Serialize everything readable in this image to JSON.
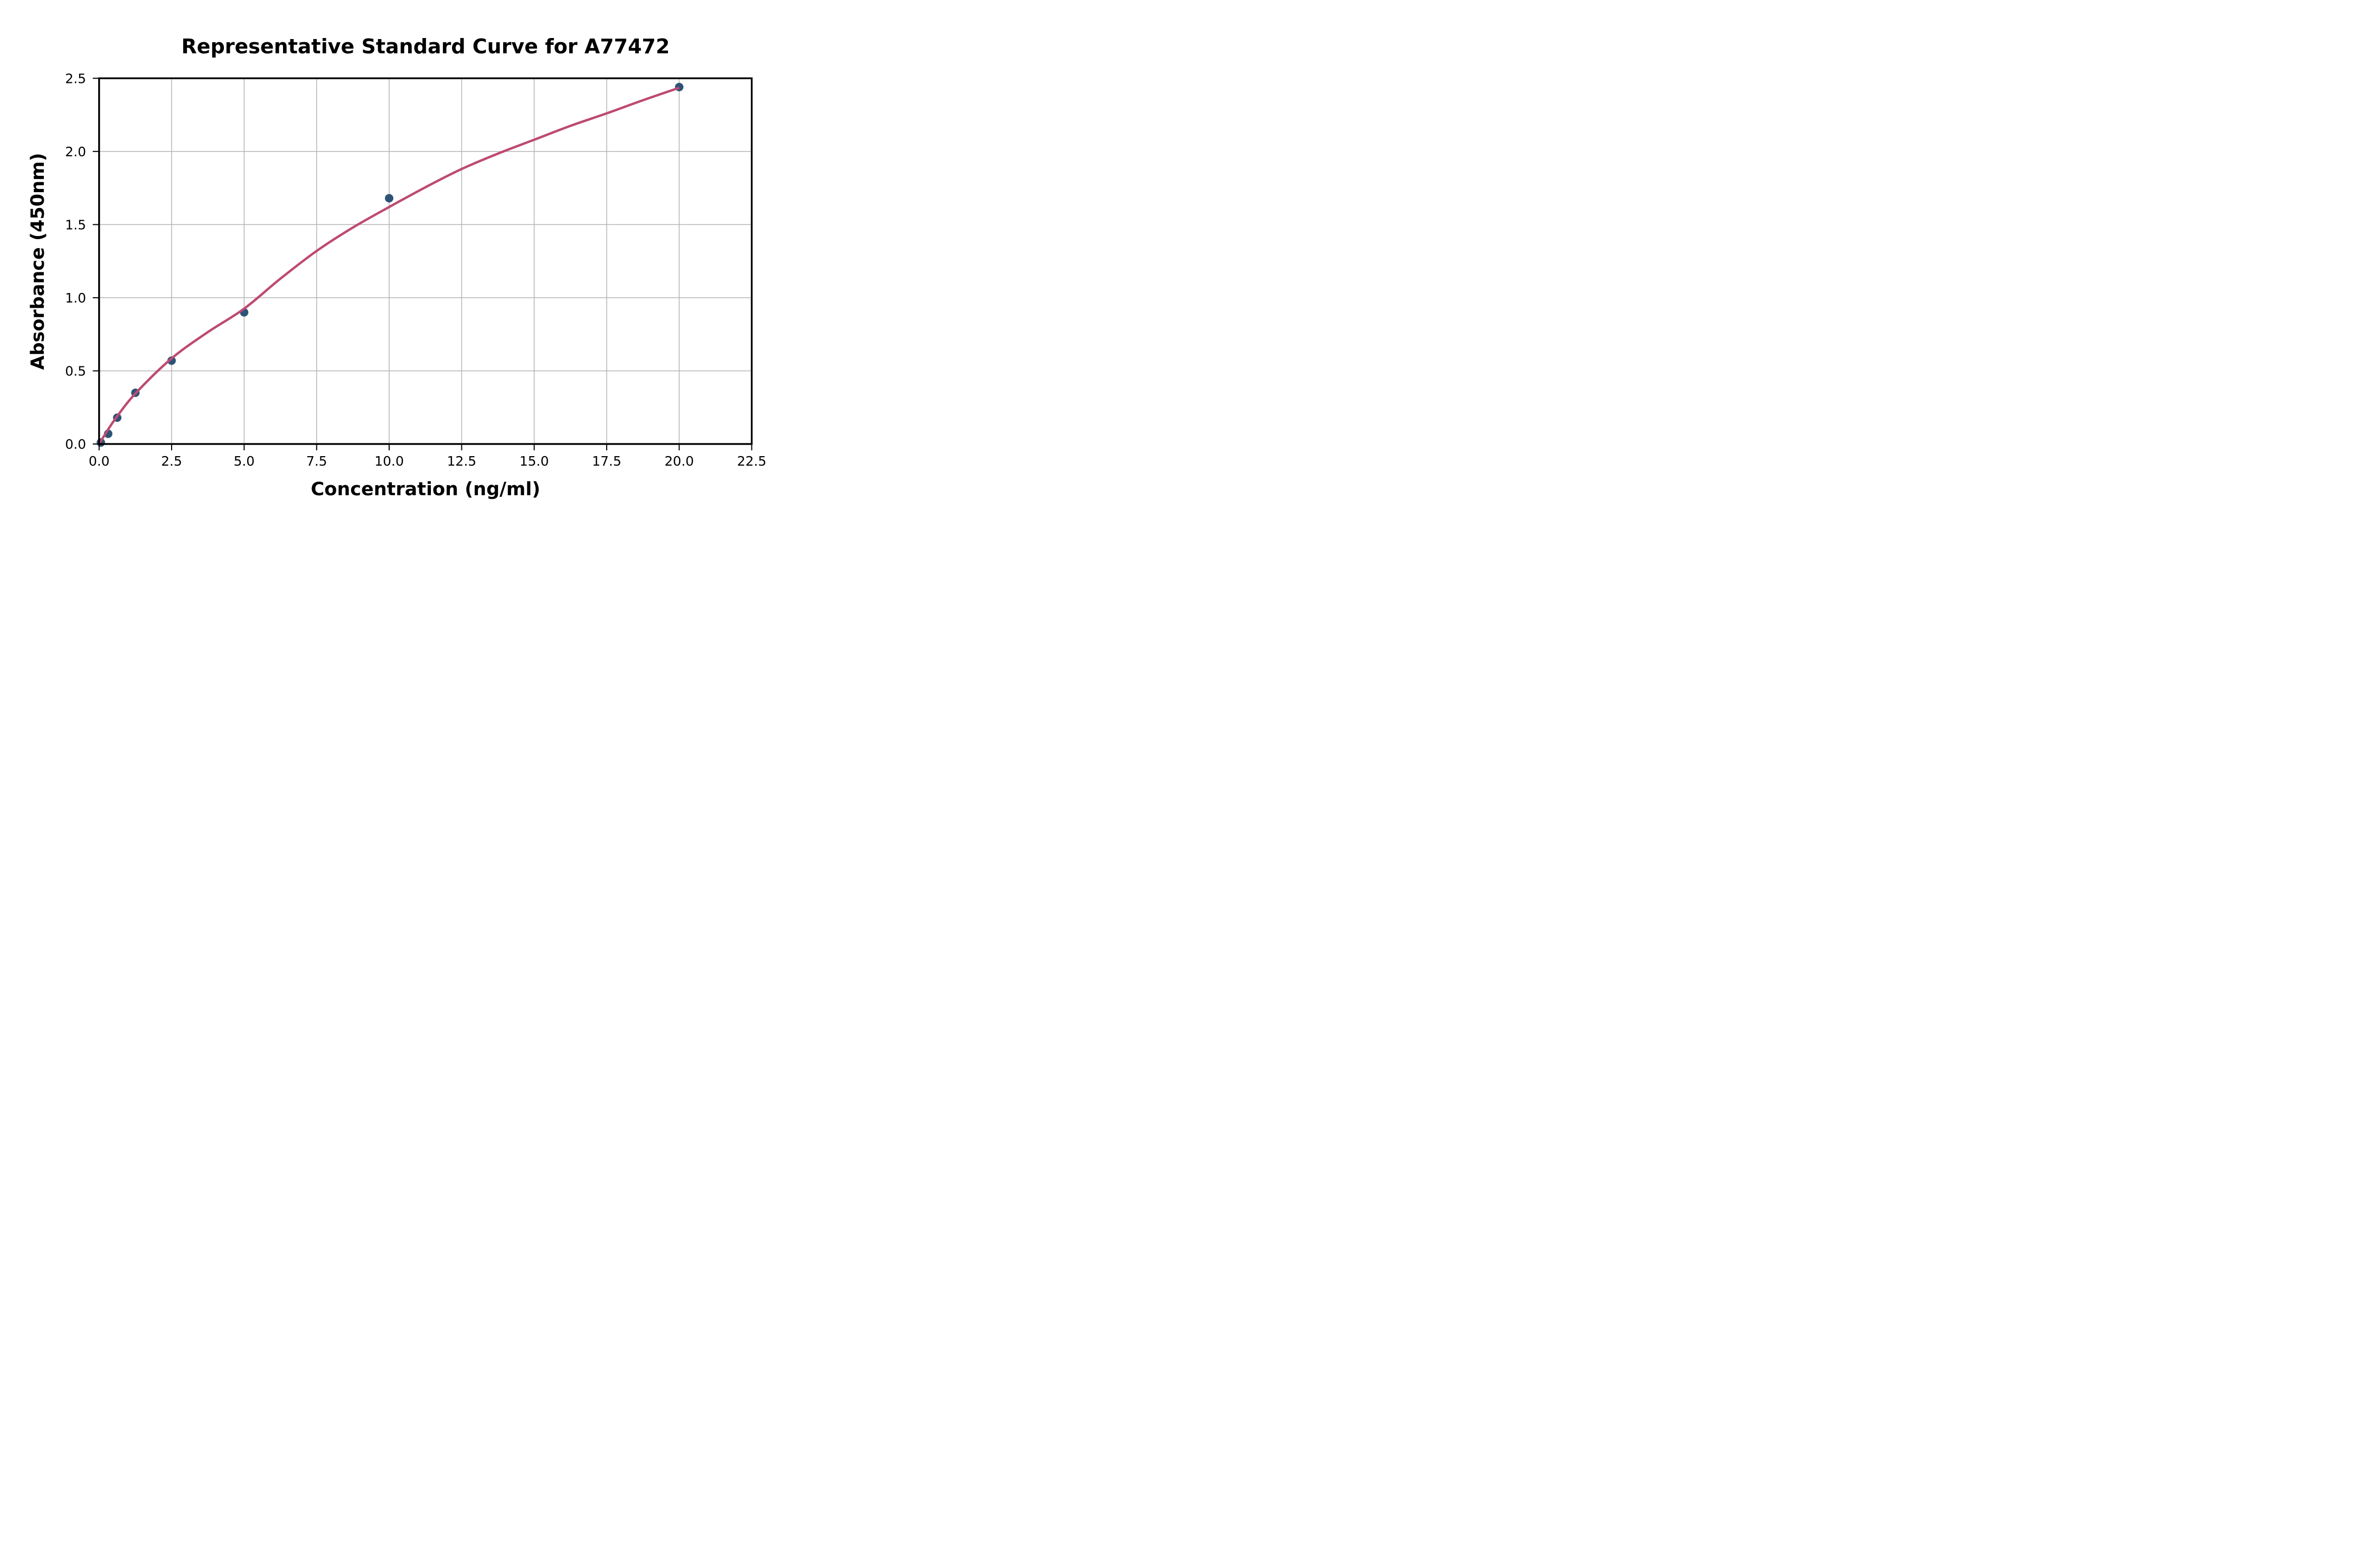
{
  "figure": {
    "title": "Representative Standard Curve for A77472",
    "x_axis": {
      "label": "Concentration (ng/ml)",
      "min": 0,
      "max": 22.5,
      "ticks": [
        0,
        2.5,
        5,
        7.5,
        10,
        12.5,
        15,
        17.5,
        20,
        22.5
      ],
      "tick_labels": [
        "0.0",
        "2.5",
        "5.0",
        "7.5",
        "10.0",
        "12.5",
        "15.0",
        "17.5",
        "20.0",
        "22.5"
      ]
    },
    "y_axis": {
      "label": "Absorbance (450nm)",
      "min": 0,
      "max": 2.5,
      "ticks": [
        0,
        0.5,
        1,
        1.5,
        2,
        2.5
      ],
      "tick_labels": [
        "0.0",
        "0.5",
        "1.0",
        "1.5",
        "2.0",
        "2.5"
      ]
    }
  },
  "chart_data": {
    "type": "scatter",
    "title": "Representative Standard Curve for A77472",
    "xlabel": "Concentration (ng/ml)",
    "ylabel": "Absorbance (450nm)",
    "xlim": [
      0,
      22.5
    ],
    "ylim": [
      0,
      2.5
    ],
    "grid": true,
    "legend": "none",
    "points": [
      {
        "x": 0.06,
        "y": 0.01
      },
      {
        "x": 0.313,
        "y": 0.07
      },
      {
        "x": 0.625,
        "y": 0.18
      },
      {
        "x": 1.25,
        "y": 0.35
      },
      {
        "x": 2.5,
        "y": 0.57
      },
      {
        "x": 5,
        "y": 0.9
      },
      {
        "x": 10,
        "y": 1.68
      },
      {
        "x": 20,
        "y": 2.44
      }
    ],
    "fit_curve_samples": [
      [
        0,
        0
      ],
      [
        0.313,
        0.1
      ],
      [
        0.625,
        0.19
      ],
      [
        1.25,
        0.345
      ],
      [
        2.5,
        0.585
      ],
      [
        3.75,
        0.765
      ],
      [
        5,
        0.925
      ],
      [
        6.25,
        1.13
      ],
      [
        7.5,
        1.32
      ],
      [
        8.75,
        1.48
      ],
      [
        10,
        1.62
      ],
      [
        11.25,
        1.755
      ],
      [
        12.5,
        1.88
      ],
      [
        13.75,
        1.985
      ],
      [
        15,
        2.08
      ],
      [
        16.25,
        2.175
      ],
      [
        17.5,
        2.26
      ],
      [
        18.75,
        2.35
      ],
      [
        20,
        2.435
      ]
    ],
    "marker_color": "#2d5476",
    "curve_color": "#bd4a72",
    "grid_color": "#b4b4b4",
    "axis_color": "#000000",
    "background_color": "#ffffff"
  }
}
